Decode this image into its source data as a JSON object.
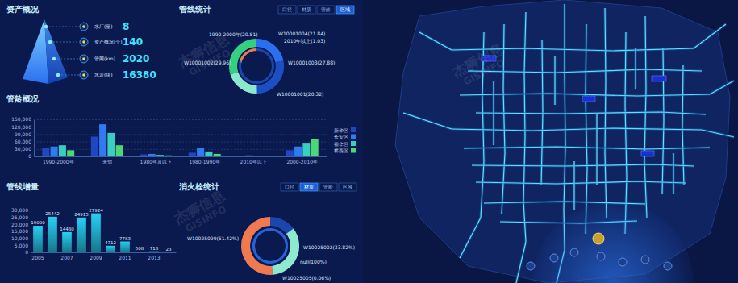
{
  "assets": {
    "title": "资产概况",
    "items": [
      {
        "label": "水厂(座)",
        "value": 8
      },
      {
        "label": "资产概况(个)",
        "value": 140
      },
      {
        "label": "管网(km)",
        "value": 2020
      },
      {
        "label": "水表(块)",
        "value": 16380
      }
    ]
  },
  "watermark": {
    "brand": "杰狮信息",
    "brand_en": "GISINFO"
  },
  "tab_bars": [
    {
      "tabs": [
        "口径",
        "材质",
        "管龄",
        "区域"
      ],
      "active": 3
    },
    {
      "tabs": [
        "口径",
        "材质",
        "管龄",
        "区域"
      ],
      "active": 1
    }
  ],
  "chart_data": [
    {
      "type": "pie",
      "title": "管线统计",
      "total": 100,
      "series": [
        {
          "values": [
            21.84,
            27.88,
            20.32,
            29.96
          ],
          "value_labels": [
            "W10001004(21.84)",
            "W10001003(27.88)",
            "W10001001(20.32)",
            "W10001002(29.96)"
          ],
          "colors": [
            "#2b6ff0",
            "#1d4fc4",
            "#8ce8cc",
            "#35d07f"
          ]
        },
        {
          "values": [
            20.51,
            1.03
          ],
          "value_labels": [
            "1990-2000年(20.51)",
            "2010年以上(1.03)"
          ],
          "colors": [
            "#f0784a",
            "#2f8cff"
          ]
        }
      ]
    },
    {
      "type": "bar",
      "title": "管龄概况",
      "categories": [
        "1990-2000年",
        "未知",
        "1980年及以下",
        "1980-1990年",
        "2010年以上",
        "2000-2010年"
      ],
      "series": [
        {
          "name": "新华区",
          "color": "#1f47c4",
          "values": [
            35000,
            80000,
            8000,
            15000,
            2000,
            25000
          ]
        },
        {
          "name": "长安区",
          "color": "#2f7cf2",
          "values": [
            40000,
            130000,
            10000,
            35000,
            4000,
            40000
          ]
        },
        {
          "name": "裕华区",
          "color": "#38cfc0",
          "values": [
            45000,
            95000,
            6000,
            20000,
            3000,
            55000
          ]
        },
        {
          "name": "桥西区",
          "color": "#4cd872",
          "values": [
            25000,
            45000,
            4000,
            10000,
            2000,
            70000
          ]
        }
      ],
      "ylim": [
        0,
        150000
      ],
      "yticks": [
        0,
        {
          "value": 30000,
          "label": "30,000"
        },
        {
          "value": 60000,
          "label": "60,000"
        },
        {
          "value": 90000,
          "label": "90,000"
        },
        {
          "value": 120000,
          "label": "120,000"
        },
        {
          "value": 150000,
          "label": "150,000"
        }
      ],
      "grid": true,
      "legend": "right"
    },
    {
      "type": "bar",
      "title": "管线增量",
      "categories": [
        "2005",
        null,
        "2007",
        null,
        "2009",
        null,
        "2011",
        null,
        "2013",
        null
      ],
      "values": [
        19000,
        25442,
        14480,
        24915,
        27924,
        4712,
        7783,
        508,
        718,
        23
      ],
      "color": "#27d0f5",
      "ylim": [
        0,
        30000
      ],
      "yticks": [
        0,
        {
          "value": 5000,
          "label": "5,000"
        },
        {
          "value": 10000,
          "label": "10,000"
        },
        {
          "value": 15000,
          "label": "15,000"
        },
        {
          "value": 20000,
          "label": "20,000"
        },
        {
          "value": 25000,
          "label": "25,000"
        },
        {
          "value": 30000,
          "label": "30,000"
        }
      ],
      "grid": false,
      "data_labels": true
    },
    {
      "type": "pie",
      "title": "消火栓统计",
      "total": 100,
      "series": [
        {
          "values": [
            51.42,
            33.82,
            0.06
          ],
          "value_labels": [
            "W10025099(51.42%)",
            "W10025002(33.82%)",
            "W10025005(0.06%)"
          ],
          "colors": [
            "#f07a4e",
            "#8fe9cf",
            "#2f8cff"
          ]
        },
        {
          "values": [
            100
          ],
          "value_labels": [
            "null(100%)"
          ],
          "colors": [
            "#2563d6"
          ]
        }
      ]
    }
  ]
}
